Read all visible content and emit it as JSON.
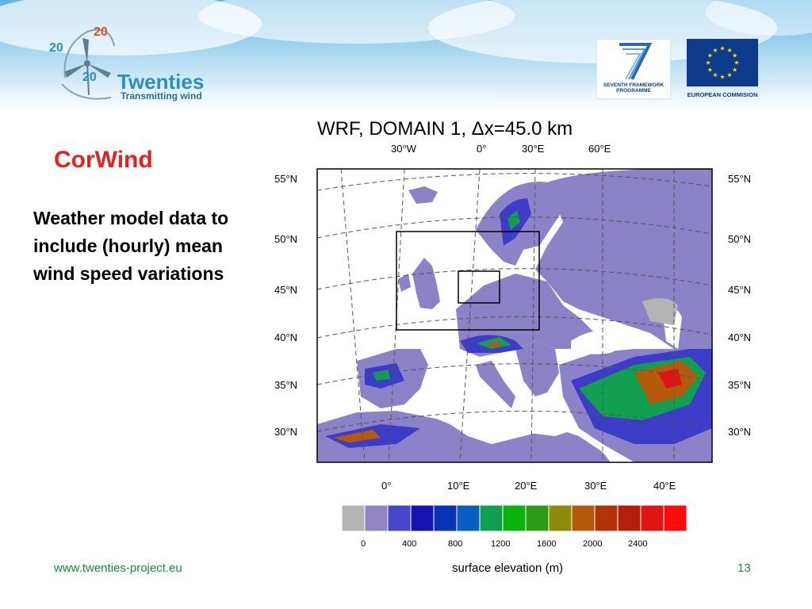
{
  "logo": {
    "numbers": [
      "20",
      "20",
      "20",
      "20"
    ],
    "name": "Twenties",
    "tagline": "Transmitting wind"
  },
  "header": {
    "fp7_label": "SEVENTH FRAMEWORK PROGRAMME",
    "eu_label": "EUROPEAN COMMISION"
  },
  "slide": {
    "title": "CorWind",
    "body": "Weather model data to include (hourly) mean wind speed variations"
  },
  "map": {
    "title": "WRF, DOMAIN 1, Δx=45.0 km",
    "top_lon_labels": [
      "30°W",
      "0°",
      "30°E",
      "60°E"
    ],
    "bottom_lon_labels": [
      "0°",
      "10°E",
      "20°E",
      "30°E",
      "40°E"
    ],
    "lat_labels": [
      "55°N",
      "50°N",
      "45°N",
      "40°N",
      "35°N",
      "30°N"
    ],
    "colorbar": {
      "colors": [
        "#b4b4b4",
        "#9384c4",
        "#4646c8",
        "#1414b0",
        "#0a32b4",
        "#0a5ec0",
        "#10a050",
        "#0ab40a",
        "#2d9b14",
        "#8c8c0a",
        "#b45a0a",
        "#b4320a",
        "#b41e0a",
        "#e11414",
        "#ff0a0a"
      ],
      "tick_labels": [
        "0",
        "400",
        "800",
        "1200",
        "1600",
        "2000",
        "2400"
      ],
      "label": "surface elevation (m)"
    }
  },
  "footer": {
    "url": "www.twenties-project.eu",
    "page": "13"
  }
}
